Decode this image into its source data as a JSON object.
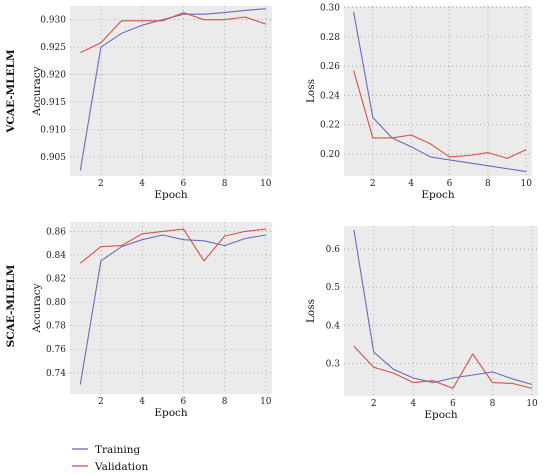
{
  "row_labels": [
    "VCAE-MLELM",
    "SCAE-MLELM"
  ],
  "legend": {
    "items": [
      {
        "label": "Training",
        "color": "#6b6bbf"
      },
      {
        "label": "Validation",
        "color": "#d9504a"
      }
    ]
  },
  "colors": {
    "training": "#6b6bbf",
    "validation": "#d9504a",
    "panel_bg": "#ebebeb"
  },
  "chart_data": [
    {
      "type": "line",
      "row_label": "VCAE-MLELM",
      "xlabel": "Epoch",
      "ylabel": "Accuracy",
      "xlim": [
        0.5,
        10.3
      ],
      "ylim": [
        0.9015,
        0.9325
      ],
      "xticks": [
        2,
        4,
        6,
        8,
        10
      ],
      "yticks": [
        0.905,
        0.91,
        0.915,
        0.92,
        0.925,
        0.93
      ],
      "ytick_labels": [
        "0.905",
        "0.910",
        "0.915",
        "0.920",
        "0.925",
        "0.930"
      ],
      "grid": true,
      "x": [
        1,
        2,
        3,
        4,
        5,
        6,
        7,
        8,
        9,
        10
      ],
      "series": [
        {
          "name": "Training",
          "values": [
            0.9025,
            0.925,
            0.9275,
            0.929,
            0.93,
            0.931,
            0.931,
            0.9313,
            0.9317,
            0.932
          ]
        },
        {
          "name": "Validation",
          "values": [
            0.924,
            0.9258,
            0.9298,
            0.9298,
            0.9298,
            0.9313,
            0.93,
            0.93,
            0.9305,
            0.9292
          ]
        }
      ]
    },
    {
      "type": "line",
      "xlabel": "Epoch",
      "ylabel": "Loss",
      "xlim": [
        0.5,
        10.3
      ],
      "ylim": [
        0.185,
        0.301
      ],
      "xticks": [
        2,
        4,
        6,
        8,
        10
      ],
      "yticks": [
        0.2,
        0.22,
        0.24,
        0.26,
        0.28,
        0.3
      ],
      "ytick_labels": [
        "0.20",
        "0.22",
        "0.24",
        "0.26",
        "0.28",
        "0.30"
      ],
      "grid": true,
      "x": [
        1,
        2,
        3,
        4,
        5,
        6,
        7,
        8,
        9,
        10
      ],
      "series": [
        {
          "name": "Training",
          "values": [
            0.297,
            0.225,
            0.211,
            0.205,
            0.198,
            0.196,
            0.194,
            0.192,
            0.19,
            0.188
          ]
        },
        {
          "name": "Validation",
          "values": [
            0.257,
            0.211,
            0.211,
            0.213,
            0.207,
            0.198,
            0.199,
            0.201,
            0.197,
            0.203
          ]
        }
      ]
    },
    {
      "type": "line",
      "row_label": "SCAE-MLELM",
      "xlabel": "Epoch",
      "ylabel": "Accuracy",
      "xlim": [
        0.5,
        10.3
      ],
      "ylim": [
        0.722,
        0.868
      ],
      "xticks": [
        2,
        4,
        6,
        8,
        10
      ],
      "yticks": [
        0.74,
        0.76,
        0.78,
        0.8,
        0.82,
        0.84,
        0.86
      ],
      "ytick_labels": [
        "0.74",
        "0.76",
        "0.78",
        "0.80",
        "0.82",
        "0.84",
        "0.86"
      ],
      "grid": true,
      "x": [
        1,
        2,
        3,
        4,
        5,
        6,
        7,
        8,
        9,
        10
      ],
      "series": [
        {
          "name": "Training",
          "values": [
            0.73,
            0.835,
            0.847,
            0.853,
            0.857,
            0.853,
            0.852,
            0.848,
            0.854,
            0.857
          ]
        },
        {
          "name": "Validation",
          "values": [
            0.833,
            0.847,
            0.848,
            0.858,
            0.86,
            0.862,
            0.835,
            0.856,
            0.86,
            0.862
          ]
        }
      ]
    },
    {
      "type": "line",
      "xlabel": "Epoch",
      "ylabel": "Loss",
      "xlim": [
        0.5,
        10.3
      ],
      "ylim": [
        0.215,
        0.66
      ],
      "xticks": [
        2,
        4,
        6,
        8,
        10
      ],
      "yticks": [
        0.3,
        0.4,
        0.5,
        0.6
      ],
      "ytick_labels": [
        "0.3",
        "0.4",
        "0.5",
        "0.6"
      ],
      "grid": true,
      "x": [
        1,
        2,
        3,
        4,
        5,
        6,
        7,
        8,
        9,
        10
      ],
      "series": [
        {
          "name": "Training",
          "values": [
            0.65,
            0.33,
            0.285,
            0.262,
            0.25,
            0.262,
            0.27,
            0.278,
            0.26,
            0.245
          ]
        },
        {
          "name": "Validation",
          "values": [
            0.345,
            0.29,
            0.275,
            0.25,
            0.255,
            0.235,
            0.325,
            0.25,
            0.248,
            0.235
          ]
        }
      ]
    }
  ]
}
